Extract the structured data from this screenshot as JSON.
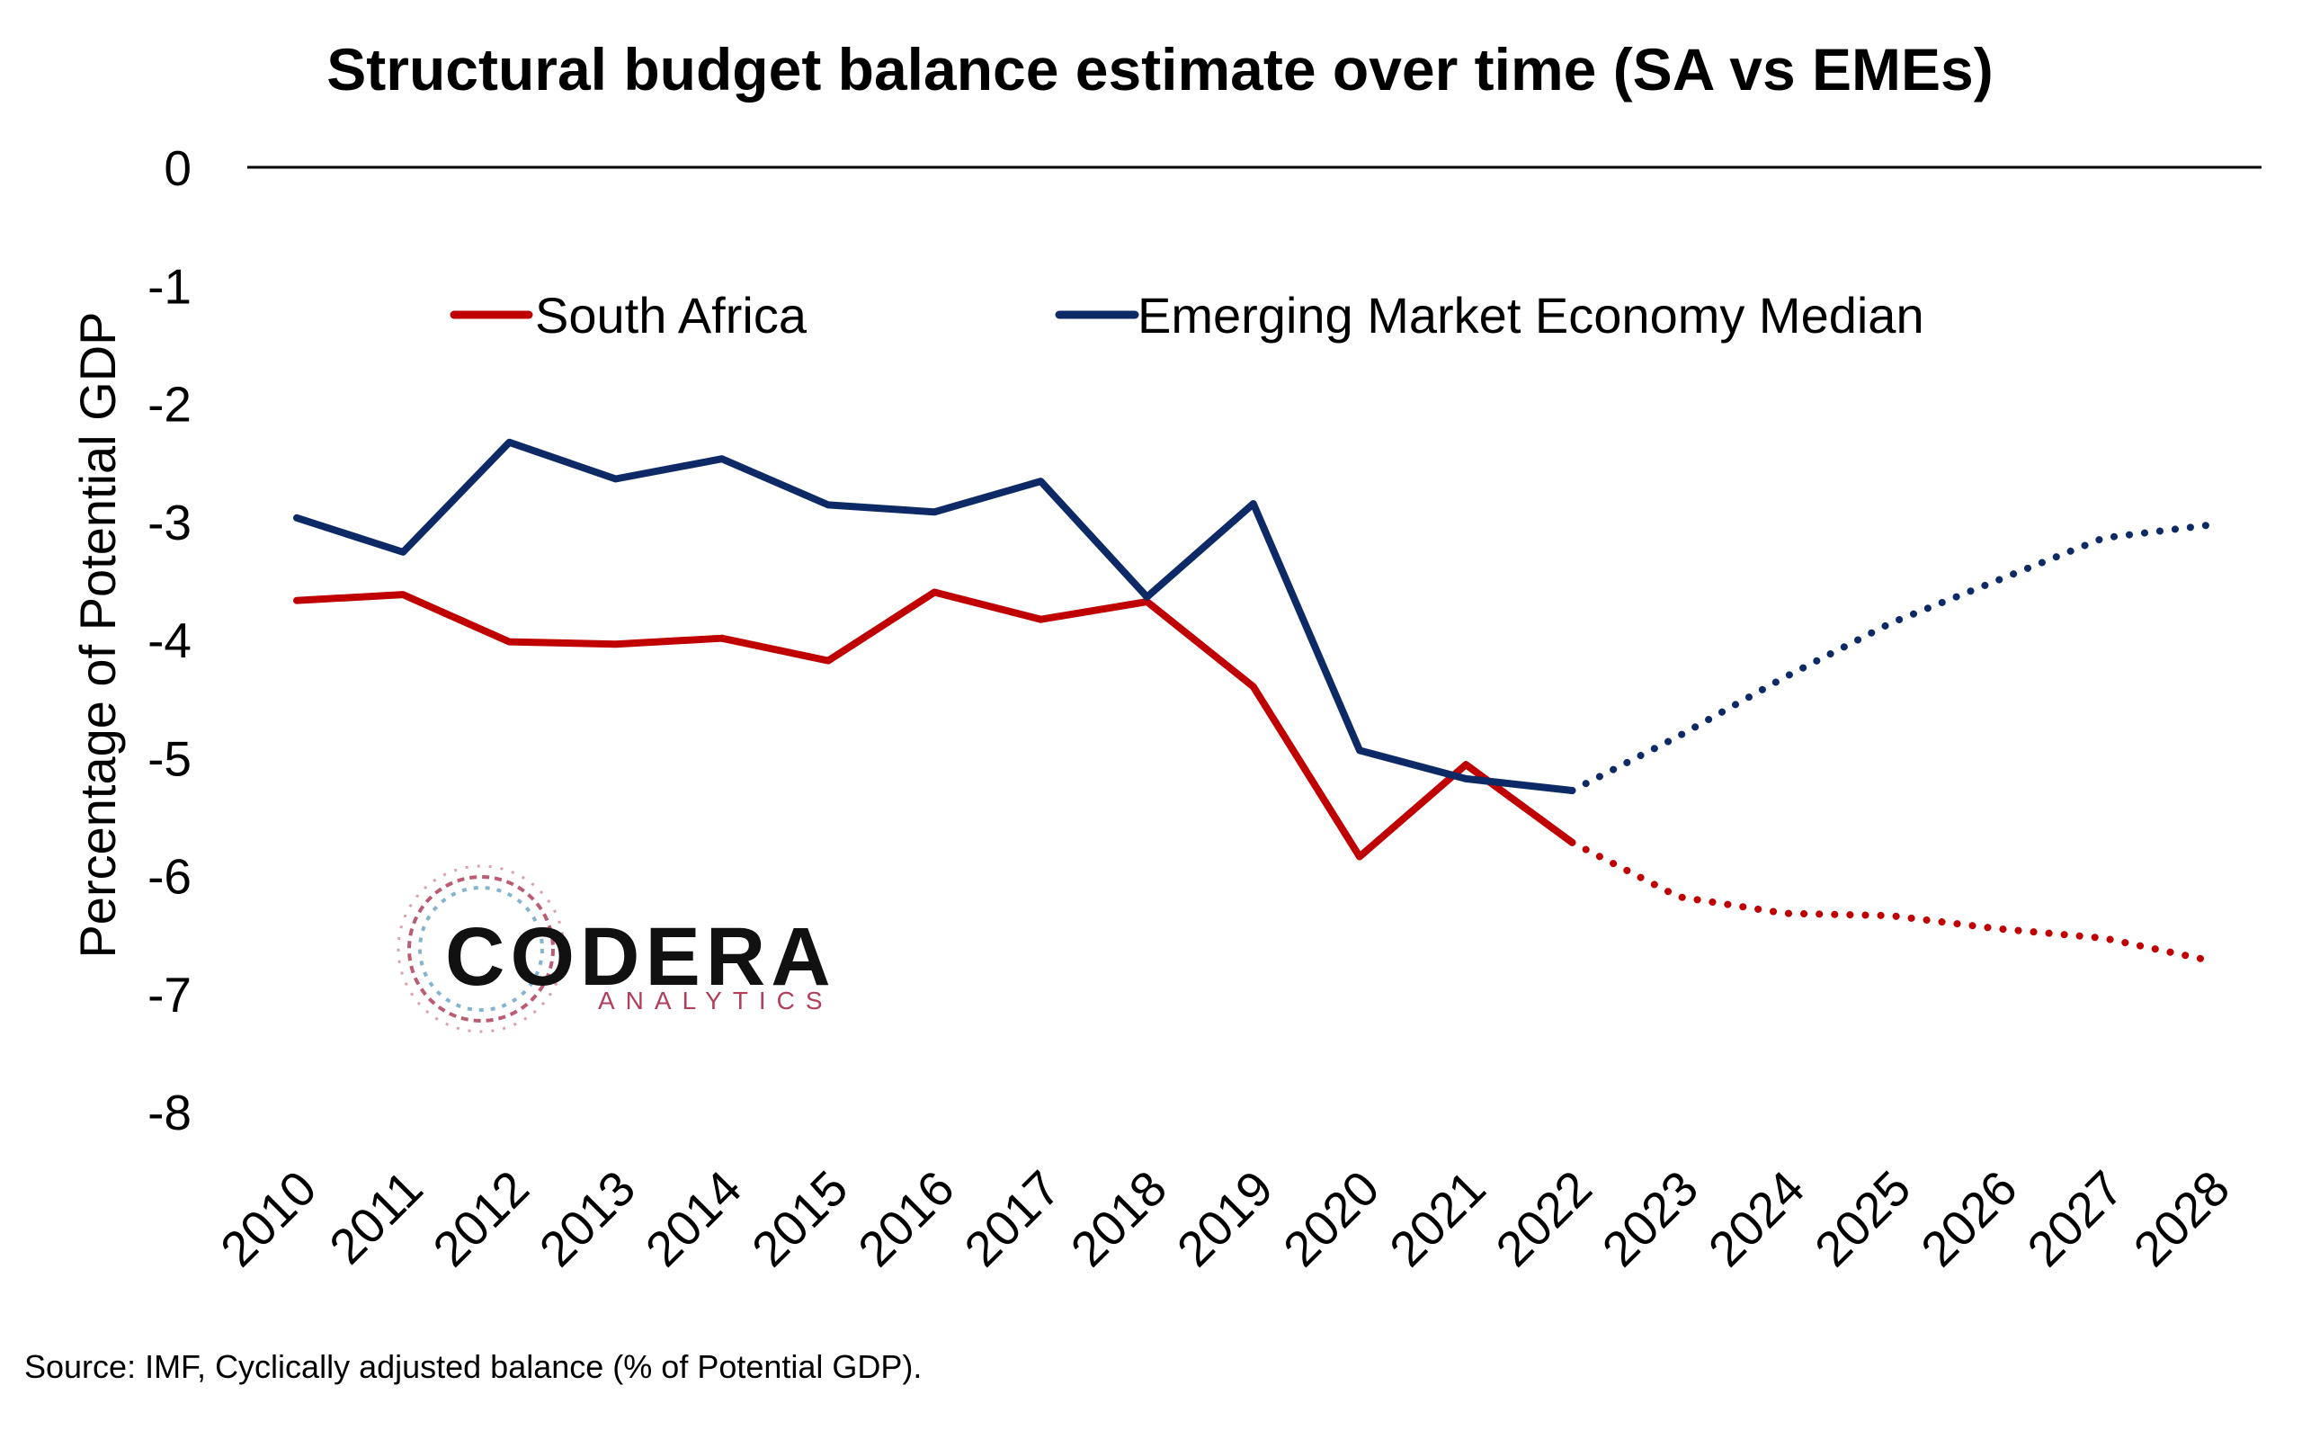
{
  "chart_data": {
    "type": "line",
    "title": "Structural budget balance estimate over time (SA vs EMEs)",
    "xlabel": "",
    "ylabel": "Percentage of Potential GDP",
    "ylim": [
      -8,
      0
    ],
    "yticks": [
      "0",
      "-1",
      "-2",
      "-3",
      "-4",
      "-5",
      "-6",
      "-7",
      "-8"
    ],
    "categories": [
      "2010",
      "2011",
      "2012",
      "2013",
      "2014",
      "2015",
      "2016",
      "2017",
      "2018",
      "2019",
      "2020",
      "2021",
      "2022",
      "2023",
      "2024",
      "2025",
      "2026",
      "2027",
      "2028"
    ],
    "forecast_start": "2022",
    "legend_position": "top-center",
    "grid": false,
    "series": [
      {
        "name": "South Africa",
        "color": "#C00000",
        "values": [
          -3.67,
          -3.62,
          -4.02,
          -4.04,
          -3.99,
          -4.18,
          -3.6,
          -3.83,
          -3.68,
          -4.4,
          -5.84,
          -5.06,
          -5.72,
          -6.18,
          -6.32,
          -6.34,
          -6.45,
          -6.53,
          -6.72
        ]
      },
      {
        "name": "Emerging Market Economy Median",
        "color": "#0D2A66",
        "values": [
          -2.97,
          -3.26,
          -2.33,
          -2.64,
          -2.47,
          -2.86,
          -2.92,
          -2.66,
          -3.64,
          -2.85,
          -4.94,
          -5.18,
          -5.28,
          -4.82,
          -4.32,
          -3.86,
          -3.5,
          -3.14,
          -3.03
        ]
      }
    ]
  },
  "logo": {
    "name": "CODERA",
    "tagline": "ANALYTICS",
    "tagline_color": "#B0405A"
  },
  "source_note": "Source: IMF, Cyclically adjusted balance (% of Potential GDP)."
}
